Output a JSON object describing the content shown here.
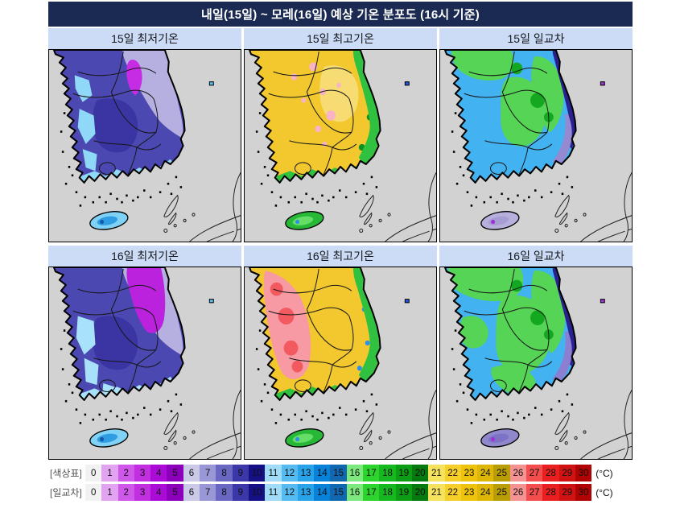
{
  "title": "내일(15일) ~ 모레(16일) 예상 기온 분포도 (16시 기준)",
  "panels": [
    {
      "title": "15일 최저기온",
      "map": {
        "base": "#4c48b2",
        "neRegion": "#b6b0e0",
        "centerDark": "#3b35a4",
        "northPatch": "#c52ce4",
        "westCyan": "#90d8f8",
        "southFringe": "#90d8f8",
        "jeju": {
          "outer": "#7fd2f5",
          "inner": "#2e9de2",
          "dot": "#1658a8"
        },
        "ulleung": "#55c0f0"
      }
    },
    {
      "title": "15일 최고기온",
      "map": {
        "base": "#f2c82e",
        "lightPatch": "#f6dc72",
        "pinkSpots": "#f8b4c4",
        "eastBandGreen": "#2fc13f",
        "southFringe": "#2fc13f",
        "darkGreenBits": "#0f9020",
        "jeju": {
          "outer": "#28b838",
          "inner": "#66dd66",
          "dot": "#2d8fe8"
        },
        "ulleung": "#2255dd"
      }
    },
    {
      "title": "15일 일교차",
      "map": {
        "base": "#42b2f0",
        "greenBlobs": "#55d455",
        "darkGreenCore": "#14a820",
        "eastBandNavy": "#2a2090",
        "purpleFringe": "#958ad2",
        "jeju": {
          "outer": "#b8b0dc",
          "inner": "#a79cd4",
          "dot": "#9b30d8"
        },
        "ulleung": "#a030d8"
      }
    },
    {
      "title": "16일 최저기온",
      "map": {
        "base": "#4c48b2",
        "neRegion": "#b6b0e0",
        "centerDark": "#3b35a4",
        "northPatchLarge": "#bb22dd",
        "westCyanLight": "#a8e2fa",
        "southFringe": "#a8e2fa",
        "jeju": {
          "outer": "#7fd2f5",
          "inner": "#2e9de2",
          "dot": "#1658a8"
        },
        "ulleung": "#55c0f0"
      }
    },
    {
      "title": "16일 최고기온",
      "map": {
        "base": "#f2c82e",
        "westRegion": "#f79aa4",
        "redCore": "#f25a60",
        "eastBandGreen": "#2fc13f",
        "southFringe": "#2fc13f",
        "blueSpecks": "#2d8fe8",
        "jeju": {
          "outer": "#28b838",
          "inner": "#66dd66",
          "dot": "#2d8fe8"
        },
        "ulleung": "#2255dd"
      }
    },
    {
      "title": "16일 일교차",
      "map": {
        "base": "#42b2f0",
        "greenBlobsLarge": "#55d455",
        "darkGreenCore": "#14a820",
        "eastBandNavy": "#2a2090",
        "purpleFringe": "#8a7fd0",
        "jeju": {
          "outer": "#9088cc",
          "inner": "#7d73c6",
          "dot": "#a030d8"
        },
        "ulleung": "#a030d8"
      }
    }
  ],
  "colorbars": [
    {
      "label": "[색상표]",
      "unit": "(°C)",
      "values": [
        0,
        1,
        2,
        3,
        4,
        5,
        6,
        7,
        8,
        9,
        10,
        11,
        12,
        13,
        14,
        15,
        16,
        17,
        18,
        19,
        20,
        21,
        22,
        23,
        24,
        25,
        26,
        27,
        28,
        29,
        30
      ],
      "colors": [
        "#f2f2f2",
        "#e2a3f0",
        "#cf57ea",
        "#c12fe0",
        "#ab0bd6",
        "#8c00bc",
        "#cbc9e8",
        "#9a97d6",
        "#6a67c2",
        "#3c38aa",
        "#151085",
        "#a0dcf8",
        "#55bbf0",
        "#28a2e8",
        "#0881d8",
        "#1268b0",
        "#7de87d",
        "#2ed42e",
        "#15b81e",
        "#0d9d15",
        "#067a0e",
        "#f5e35e",
        "#f6cf2a",
        "#eec30b",
        "#ddb608",
        "#b89d05",
        "#f59393",
        "#f44d4d",
        "#ea2020",
        "#d01212",
        "#b00303"
      ]
    },
    {
      "label": "[일교차]",
      "unit": "(°C)",
      "values": [
        0,
        1,
        2,
        3,
        4,
        5,
        6,
        7,
        8,
        9,
        10,
        11,
        12,
        13,
        14,
        15,
        16,
        17,
        18,
        19,
        20,
        21,
        22,
        23,
        24,
        25,
        26,
        27,
        28,
        29,
        30
      ],
      "colors": [
        "#f2f2f2",
        "#e2a3f0",
        "#cf57ea",
        "#c12fe0",
        "#ab0bd6",
        "#8c00bc",
        "#cbc9e8",
        "#9a97d6",
        "#6a67c2",
        "#3c38aa",
        "#151085",
        "#a0dcf8",
        "#55bbf0",
        "#28a2e8",
        "#0881d8",
        "#1268b0",
        "#7de87d",
        "#2ed42e",
        "#15b81e",
        "#0d9d15",
        "#067a0e",
        "#f5e35e",
        "#f6cf2a",
        "#eec30b",
        "#ddb608",
        "#b89d05",
        "#f59393",
        "#f44d4d",
        "#ea2020",
        "#d01212",
        "#b00303"
      ]
    }
  ]
}
